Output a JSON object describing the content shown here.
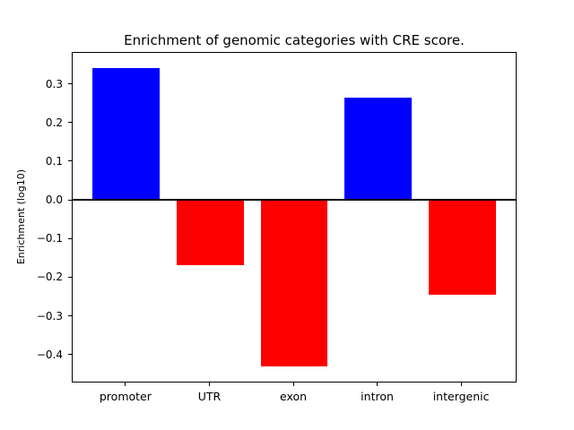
{
  "chart_data": {
    "type": "bar",
    "title": "Enrichment of genomic categories with CRE score.",
    "xlabel": "",
    "ylabel": "Enrichment (log10)",
    "categories": [
      "promoter",
      "UTR",
      "exon",
      "intron",
      "intergenic"
    ],
    "values": [
      0.34,
      -0.17,
      -0.43,
      0.265,
      -0.245
    ],
    "bar_colors": [
      "#0000ff",
      "#ff0000",
      "#ff0000",
      "#0000ff",
      "#ff0000"
    ],
    "positive_color": "#0000ff",
    "negative_color": "#ff0000",
    "axis_color": "#000000",
    "background_color": "#ffffff",
    "yticks": [
      0.3,
      0.2,
      0.1,
      0.0,
      -0.1,
      -0.2,
      -0.3,
      -0.4
    ],
    "ytick_labels": [
      "0.3",
      "0.2",
      "0.1",
      "0.0",
      "−0.1",
      "−0.2",
      "−0.3",
      "−0.4"
    ],
    "ylim": [
      -0.47,
      0.38
    ],
    "grid": false,
    "zero_line": true,
    "legend_position": "none"
  }
}
